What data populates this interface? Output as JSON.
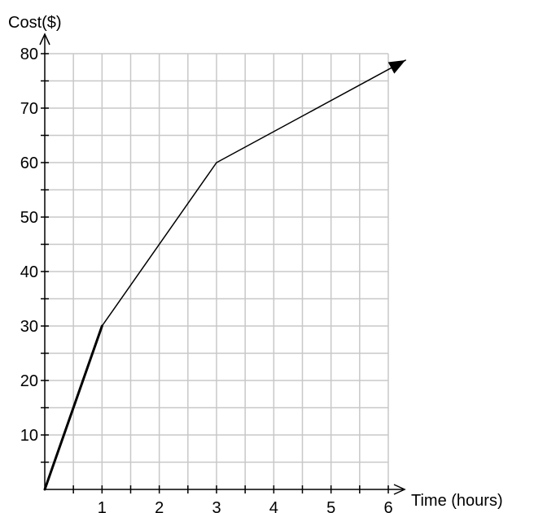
{
  "chart_data": {
    "type": "line",
    "title": "",
    "xlabel": "Time (hours)",
    "ylabel": "Cost($)",
    "xlim": [
      0,
      6
    ],
    "ylim": [
      0,
      80
    ],
    "x_ticks": [
      "1",
      "2",
      "3",
      "4",
      "5",
      "6"
    ],
    "y_ticks": [
      "10",
      "20",
      "30",
      "40",
      "50",
      "60",
      "70",
      "80"
    ],
    "grid": true,
    "grid_step": {
      "x": 0.5,
      "y": 5
    },
    "series": [
      {
        "x": [
          0,
          1,
          3,
          6.3
        ],
        "y": [
          0,
          30,
          60,
          78.8
        ],
        "arrow_end": true
      }
    ],
    "colors": {
      "grid": "#c8c8c8",
      "axis": "#000000",
      "line": "#000000"
    }
  }
}
